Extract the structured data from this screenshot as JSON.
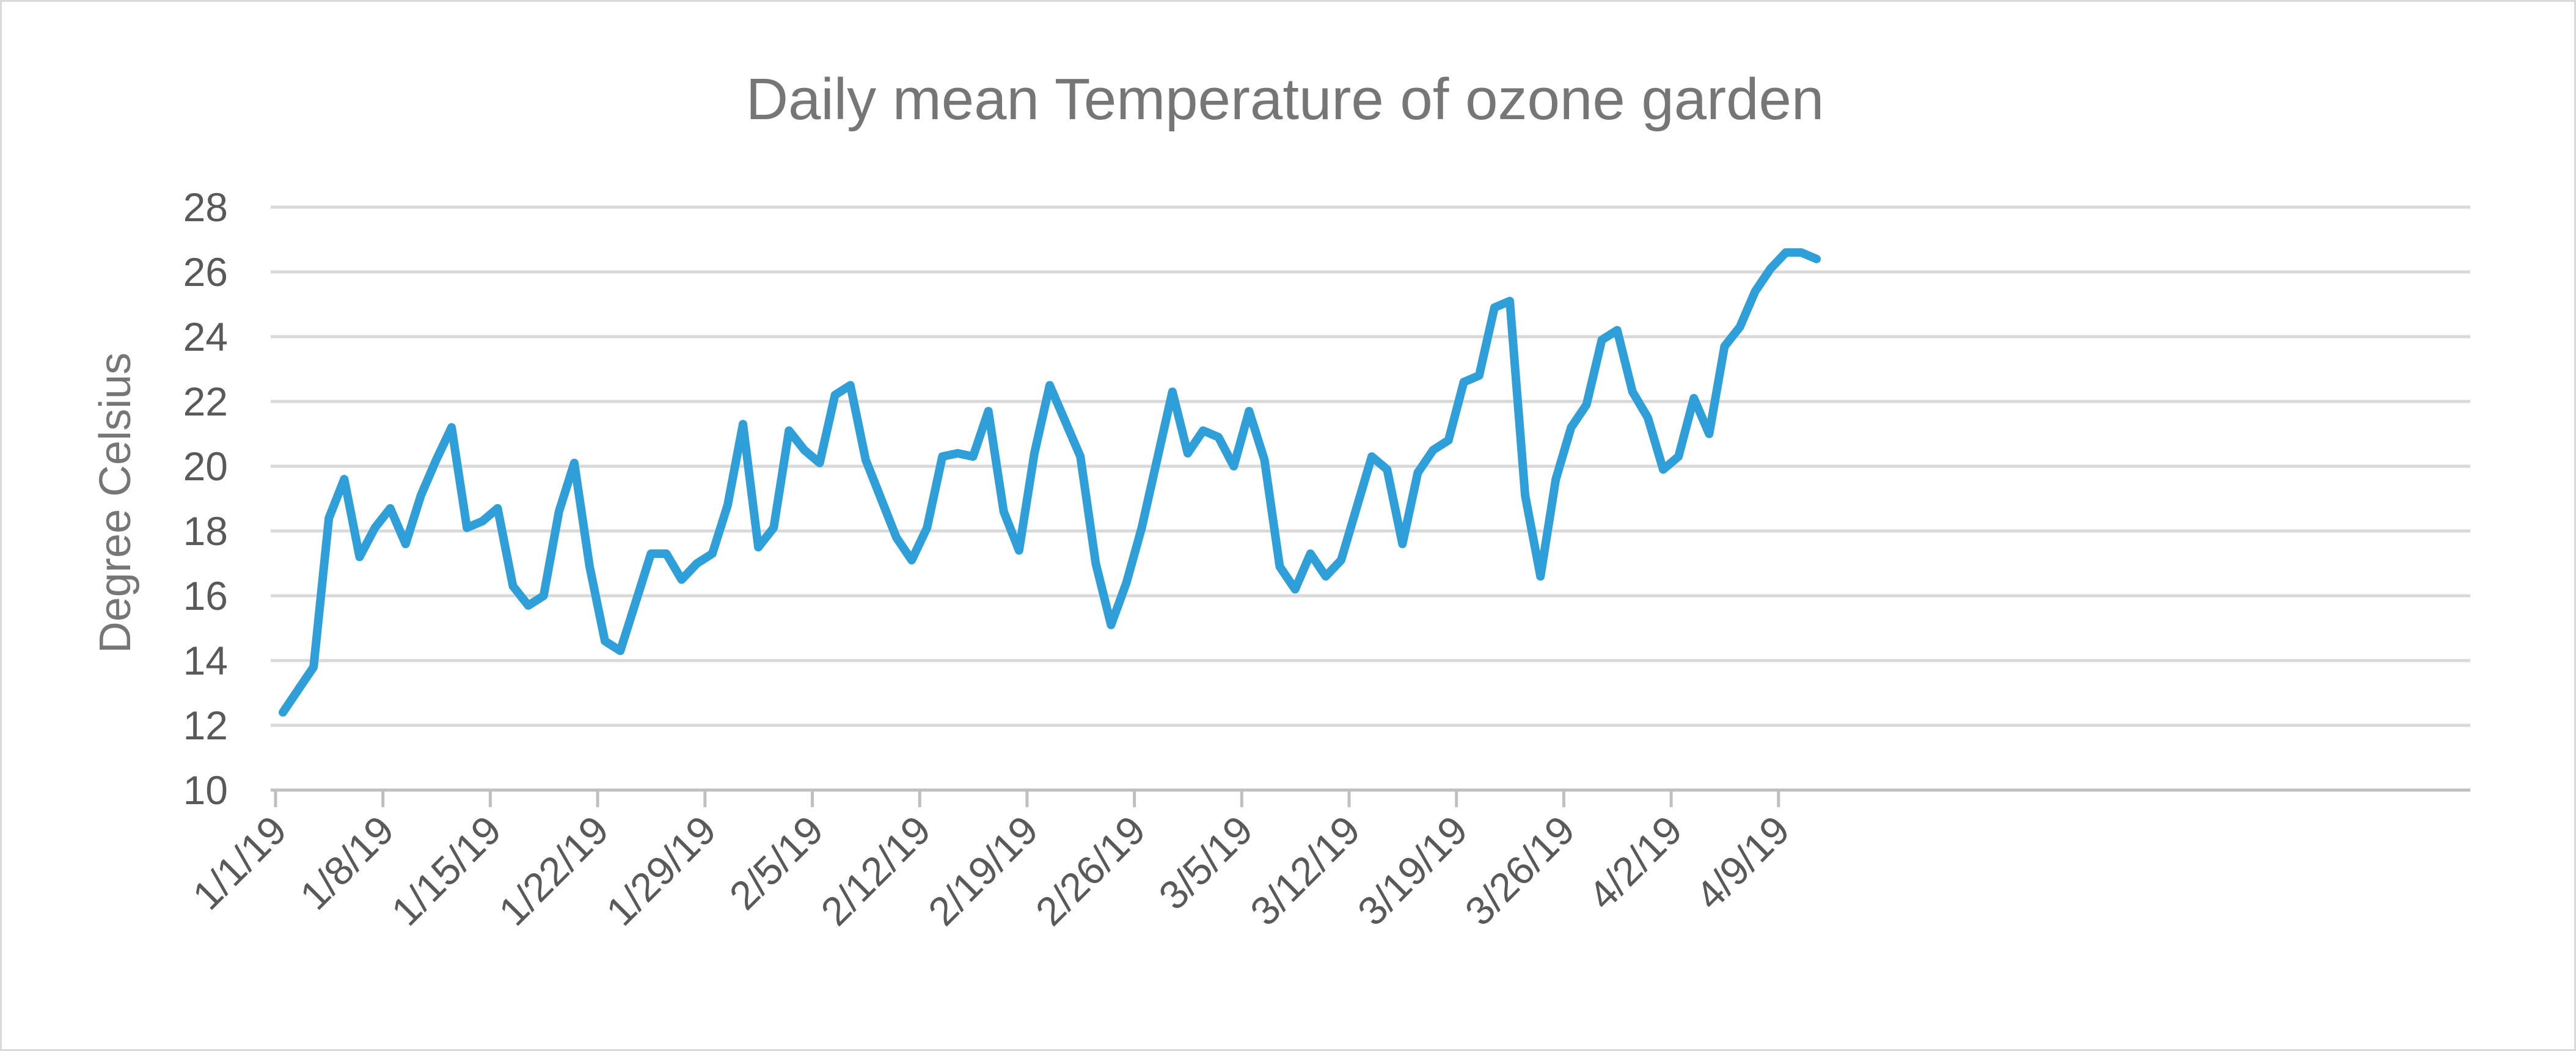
{
  "chart_data": {
    "type": "line",
    "title": "Daily mean Temperature of ozone garden",
    "xlabel": "",
    "ylabel": "Degree Celsius",
    "ylim": [
      10,
      28
    ],
    "yticks": [
      10,
      12,
      14,
      16,
      18,
      20,
      22,
      24,
      26,
      28
    ],
    "xtick_labels": [
      "1/1/19",
      "1/8/19",
      "1/15/19",
      "1/22/19",
      "1/29/19",
      "2/5/19",
      "2/12/19",
      "2/19/19",
      "2/26/19",
      "3/5/19",
      "3/12/19",
      "3/19/19",
      "3/26/19",
      "4/2/19",
      "4/9/19"
    ],
    "x_start": "1/1/19",
    "x_end": "4/11/19",
    "grid": true,
    "legend": "none",
    "line_color": "#2e9fd9",
    "series": [
      {
        "values": [
          12.4,
          13.1,
          13.8,
          18.4,
          19.6,
          17.2,
          18.1,
          18.7,
          17.6,
          19.1,
          20.2,
          21.2,
          18.1,
          18.3,
          18.7,
          16.3,
          15.7,
          16.0,
          18.6,
          20.1,
          16.9,
          14.6,
          14.3,
          15.8,
          17.3,
          17.3,
          16.5,
          17.0,
          17.3,
          18.8,
          21.3,
          17.5,
          18.1,
          21.1,
          20.5,
          20.1,
          22.2,
          22.5,
          20.2,
          19.0,
          17.8,
          17.1,
          18.1,
          20.3,
          20.4,
          20.3,
          21.7,
          18.6,
          17.4,
          20.4,
          22.5,
          21.4,
          20.3,
          17.0,
          15.1,
          16.4,
          18.1,
          20.2,
          22.3,
          20.4,
          21.1,
          20.9,
          20.0,
          21.7,
          20.2,
          16.9,
          16.2,
          17.3,
          16.6,
          17.1,
          18.7,
          20.3,
          19.9,
          17.6,
          19.8,
          20.5,
          20.8,
          22.6,
          22.8,
          24.9,
          25.1,
          19.1,
          16.6,
          19.6,
          21.2,
          21.9,
          23.9,
          24.2,
          22.3,
          21.5,
          19.9,
          20.3,
          22.1,
          21.0,
          23.7,
          24.3,
          25.4,
          26.1,
          26.6,
          26.6,
          26.4
        ]
      }
    ]
  }
}
